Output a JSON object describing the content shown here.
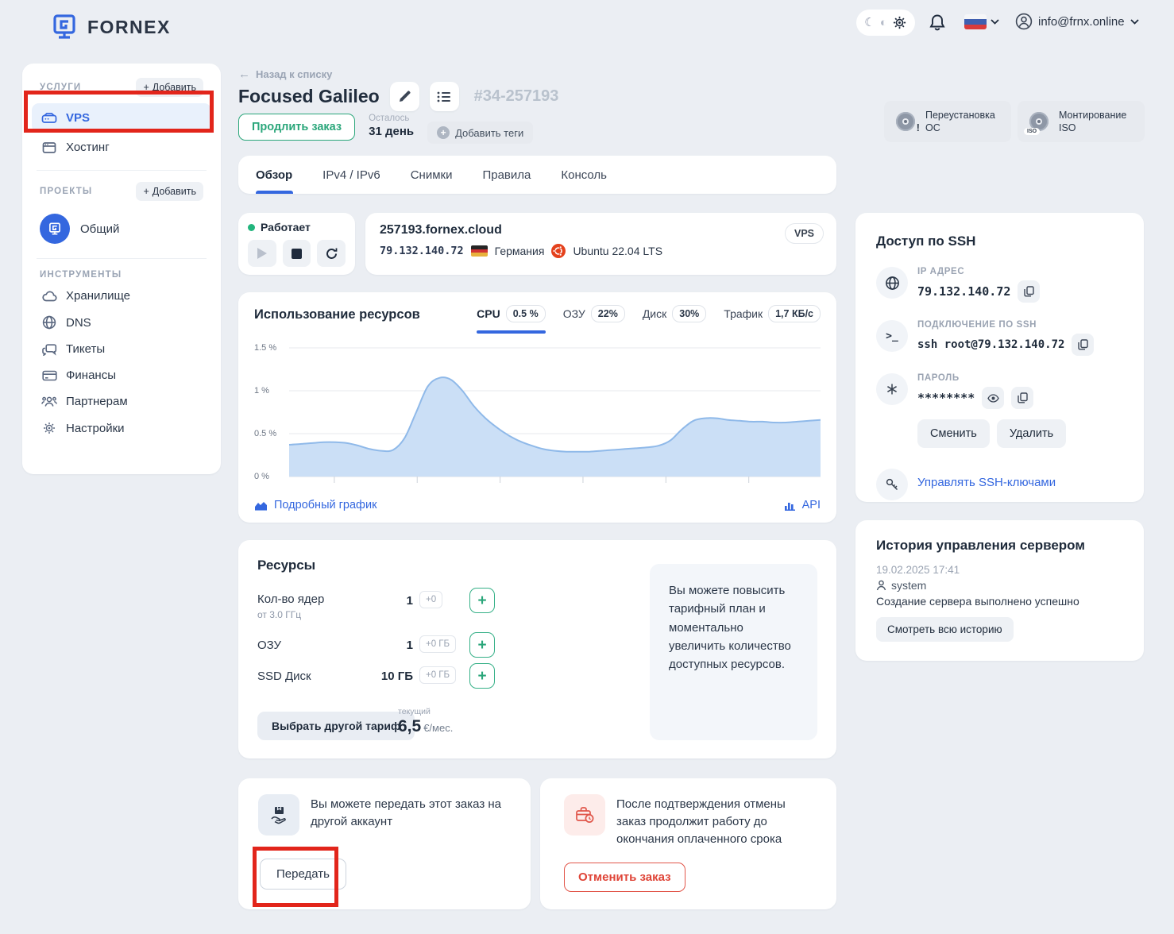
{
  "colors": {
    "accent_blue": "#3467df",
    "green": "#2aa67a",
    "annotation_red": "#e2251b",
    "danger_red": "#df4437",
    "ubuntu_orange": "#e95420",
    "chart_fill": "#cbdff6",
    "chart_stroke": "#8fb9e9",
    "status_green": "#22b57d"
  },
  "icons": {
    "plus": "+",
    "back_arrow": "←",
    "moon": "☾",
    "auto_theme": "◐",
    "terminal": ">_"
  },
  "topbar": {
    "brand": "FORNEX",
    "user_email": "info@frnx.online"
  },
  "sidebar": {
    "services": {
      "label": "УСЛУГИ",
      "add_label": "Добавить",
      "items": [
        {
          "label": "VPS",
          "active": true
        },
        {
          "label": "Хостинг",
          "active": false
        }
      ]
    },
    "projects": {
      "label": "ПРОЕКТЫ",
      "add_label": "Добавить",
      "items": [
        {
          "label": "Общий"
        }
      ]
    },
    "tools": {
      "label": "ИНСТРУМЕНТЫ",
      "items": [
        {
          "label": "Хранилище"
        },
        {
          "label": "DNS"
        },
        {
          "label": "Тикеты"
        },
        {
          "label": "Финансы"
        },
        {
          "label": "Партнерам"
        },
        {
          "label": "Настройки"
        }
      ]
    }
  },
  "header": {
    "back": "Назад к списку",
    "title": "Focused Galileo",
    "order_id": "#34-257193",
    "renew_button": "Продлить заказ",
    "remaining_label": "Осталось",
    "remaining_value": "31 день",
    "add_tags": "Добавить теги",
    "reinstall_os": "Переустановка ОС",
    "mount_iso": "Монтирование ISO",
    "iso_badge": "ISO"
  },
  "tabs": [
    {
      "label": "Обзор",
      "active": true
    },
    {
      "label": "IPv4 / IPv6",
      "active": false
    },
    {
      "label": "Снимки",
      "active": false
    },
    {
      "label": "Правила",
      "active": false
    },
    {
      "label": "Консоль",
      "active": false
    }
  ],
  "status": {
    "state": "Работает"
  },
  "server": {
    "hostname": "257193.fornex.cloud",
    "ip": "79.132.140.72",
    "location": "Германия",
    "os": "Ubuntu 22.04 LTS",
    "badge": "VPS"
  },
  "usage": {
    "title": "Использование ресурсов",
    "metrics": [
      {
        "label": "CPU",
        "value": "0.5 %",
        "active": true
      },
      {
        "label": "ОЗУ",
        "value": "22%",
        "active": false
      },
      {
        "label": "Диск",
        "value": "30%",
        "active": false
      },
      {
        "label": "Трафик",
        "value": "1,7 КБ/с",
        "active": false
      }
    ],
    "detailed_link": "Подробный график",
    "api_link": "API"
  },
  "chart_data": {
    "type": "area",
    "title": "Использование ресурсов — CPU",
    "series": [
      {
        "name": "CPU",
        "unit": "%",
        "values": [
          0.37,
          0.38,
          0.39,
          0.4,
          0.4,
          0.39,
          0.36,
          0.32,
          0.3,
          0.31,
          0.45,
          0.75,
          1.05,
          1.15,
          1.13,
          1.0,
          0.82,
          0.68,
          0.57,
          0.48,
          0.41,
          0.36,
          0.32,
          0.3,
          0.29,
          0.29,
          0.29,
          0.3,
          0.31,
          0.32,
          0.33,
          0.34,
          0.36,
          0.42,
          0.55,
          0.65,
          0.68,
          0.68,
          0.66,
          0.65,
          0.64,
          0.64,
          0.63,
          0.63,
          0.64,
          0.65,
          0.66
        ]
      }
    ],
    "ylim": [
      0,
      1.5
    ],
    "yticks_desc": [
      "1.5 %",
      "1 %",
      "0.5 %",
      "0 %"
    ],
    "x_tick_count": 6,
    "grid": true,
    "legend_position": "none"
  },
  "resources": {
    "title": "Ресурсы",
    "rows": [
      {
        "label": "Кол-во ядер",
        "sub": "от 3.0 ГГц",
        "value": "1",
        "badge": "+0"
      },
      {
        "label": "ОЗУ",
        "sub": "",
        "value": "1",
        "badge": "+0 ГБ"
      },
      {
        "label": "SSD Диск",
        "sub": "",
        "value": "10 ГБ",
        "badge": "+0 ГБ"
      }
    ],
    "tariff_button": "Выбрать другой тариф",
    "current_label": "текущий",
    "price": "6,5",
    "price_unit": "€/мес.",
    "promo": "Вы можете повысить тарифный план и моментально увеличить количество доступных ресурсов."
  },
  "ssh": {
    "title": "Доступ по SSH",
    "ip_label": "IP АДРЕС",
    "ip_value": "79.132.140.72",
    "conn_label": "ПОДКЛЮЧЕНИЕ ПО SSH",
    "conn_value": "ssh root@79.132.140.72",
    "password_label": "ПАРОЛЬ",
    "password_mask": "********",
    "change_button": "Сменить",
    "delete_button": "Удалить",
    "manage_keys_link": "Управлять SSH-ключами"
  },
  "history": {
    "title": "История управления сервером",
    "date": "19.02.2025 17:41",
    "user": "system",
    "event": "Создание сервера выполнено успешно",
    "view_all_button": "Смотреть всю историю"
  },
  "transfer": {
    "text": "Вы можете передать этот заказ на другой аккаунт",
    "button": "Передать"
  },
  "cancel": {
    "text": "После подтверждения отмены заказ продолжит работу до окончания оплаченного срока",
    "button": "Отменить заказ"
  }
}
